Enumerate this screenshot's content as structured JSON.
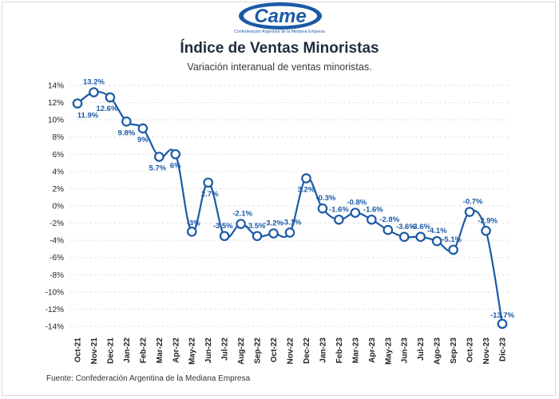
{
  "logo": {
    "text": "Came",
    "tagline": "Confederación Argentina de la Mediana Empresa"
  },
  "header": {
    "title": "Índice de Ventas Minoristas",
    "subtitle": "Variación interanual de ventas minoristas."
  },
  "footer": {
    "source": "Fuente: Confederación Argentina de la Mediana Empresa"
  },
  "colors": {
    "series": "#1b5aa6",
    "grid": "#e2e2e2",
    "text": "#1f2d3d"
  },
  "chart_data": {
    "type": "line",
    "title": "Índice de Ventas Minoristas",
    "subtitle": "Variación interanual de ventas minoristas.",
    "xlabel": "",
    "ylabel": "",
    "ylim": [
      -14,
      14
    ],
    "yticks": [
      14,
      12,
      10,
      8,
      6,
      4,
      2,
      0,
      -2,
      -4,
      -6,
      -8,
      -10,
      -12,
      -14
    ],
    "ytick_labels": [
      "14%",
      "12%",
      "10%",
      "8%",
      "6%",
      "4%",
      "2%",
      "0%",
      "-2%",
      "-4%",
      "-6%",
      "-8%",
      "-10%",
      "-12%",
      "-14%"
    ],
    "grid": true,
    "categories": [
      "Oct-21",
      "Nov-21",
      "Dec-21",
      "Jan-22",
      "Feb-22",
      "Mar-22",
      "Apr-22",
      "May-22",
      "Jun-22",
      "Jul-22",
      "Aug-22",
      "Sep-22",
      "Oct-22",
      "Nov-22",
      "Dec-22",
      "Jan-23",
      "Feb-23",
      "Mar-23",
      "Apr-23",
      "May-23",
      "Jun-23",
      "Jul-23",
      "Ago-23",
      "Sep-23",
      "Oct-23",
      "Nov-23",
      "Dic-23"
    ],
    "series": [
      {
        "values": [
          11.9,
          13.2,
          12.6,
          9.8,
          9,
          5.7,
          6,
          -3,
          2.7,
          -3.5,
          -2.1,
          -3.5,
          -3.2,
          -3.1,
          3.2,
          -0.3,
          -1.6,
          -0.8,
          -1.6,
          -2.8,
          -3.6,
          -3.6,
          -4.1,
          -5.1,
          -0.7,
          -2.9,
          -13.7
        ],
        "labels": [
          "11.9%",
          "13.2%",
          "12.6%",
          "9.8%",
          "9%",
          "5.7%",
          "6%",
          "-3%",
          "2.7%",
          "-3.5%",
          "-2.1%",
          "-3.5%",
          "-3.2%",
          "-3.1%",
          "3.2%",
          "-0.3%",
          "-1.6%",
          "-0.8%",
          "-1.6%",
          "-2.8%",
          "-3.6%",
          "-3.6%",
          "-4.1%",
          "-5.1%",
          "-0.7%",
          "-2.9%",
          "-13.7%"
        ]
      }
    ]
  }
}
